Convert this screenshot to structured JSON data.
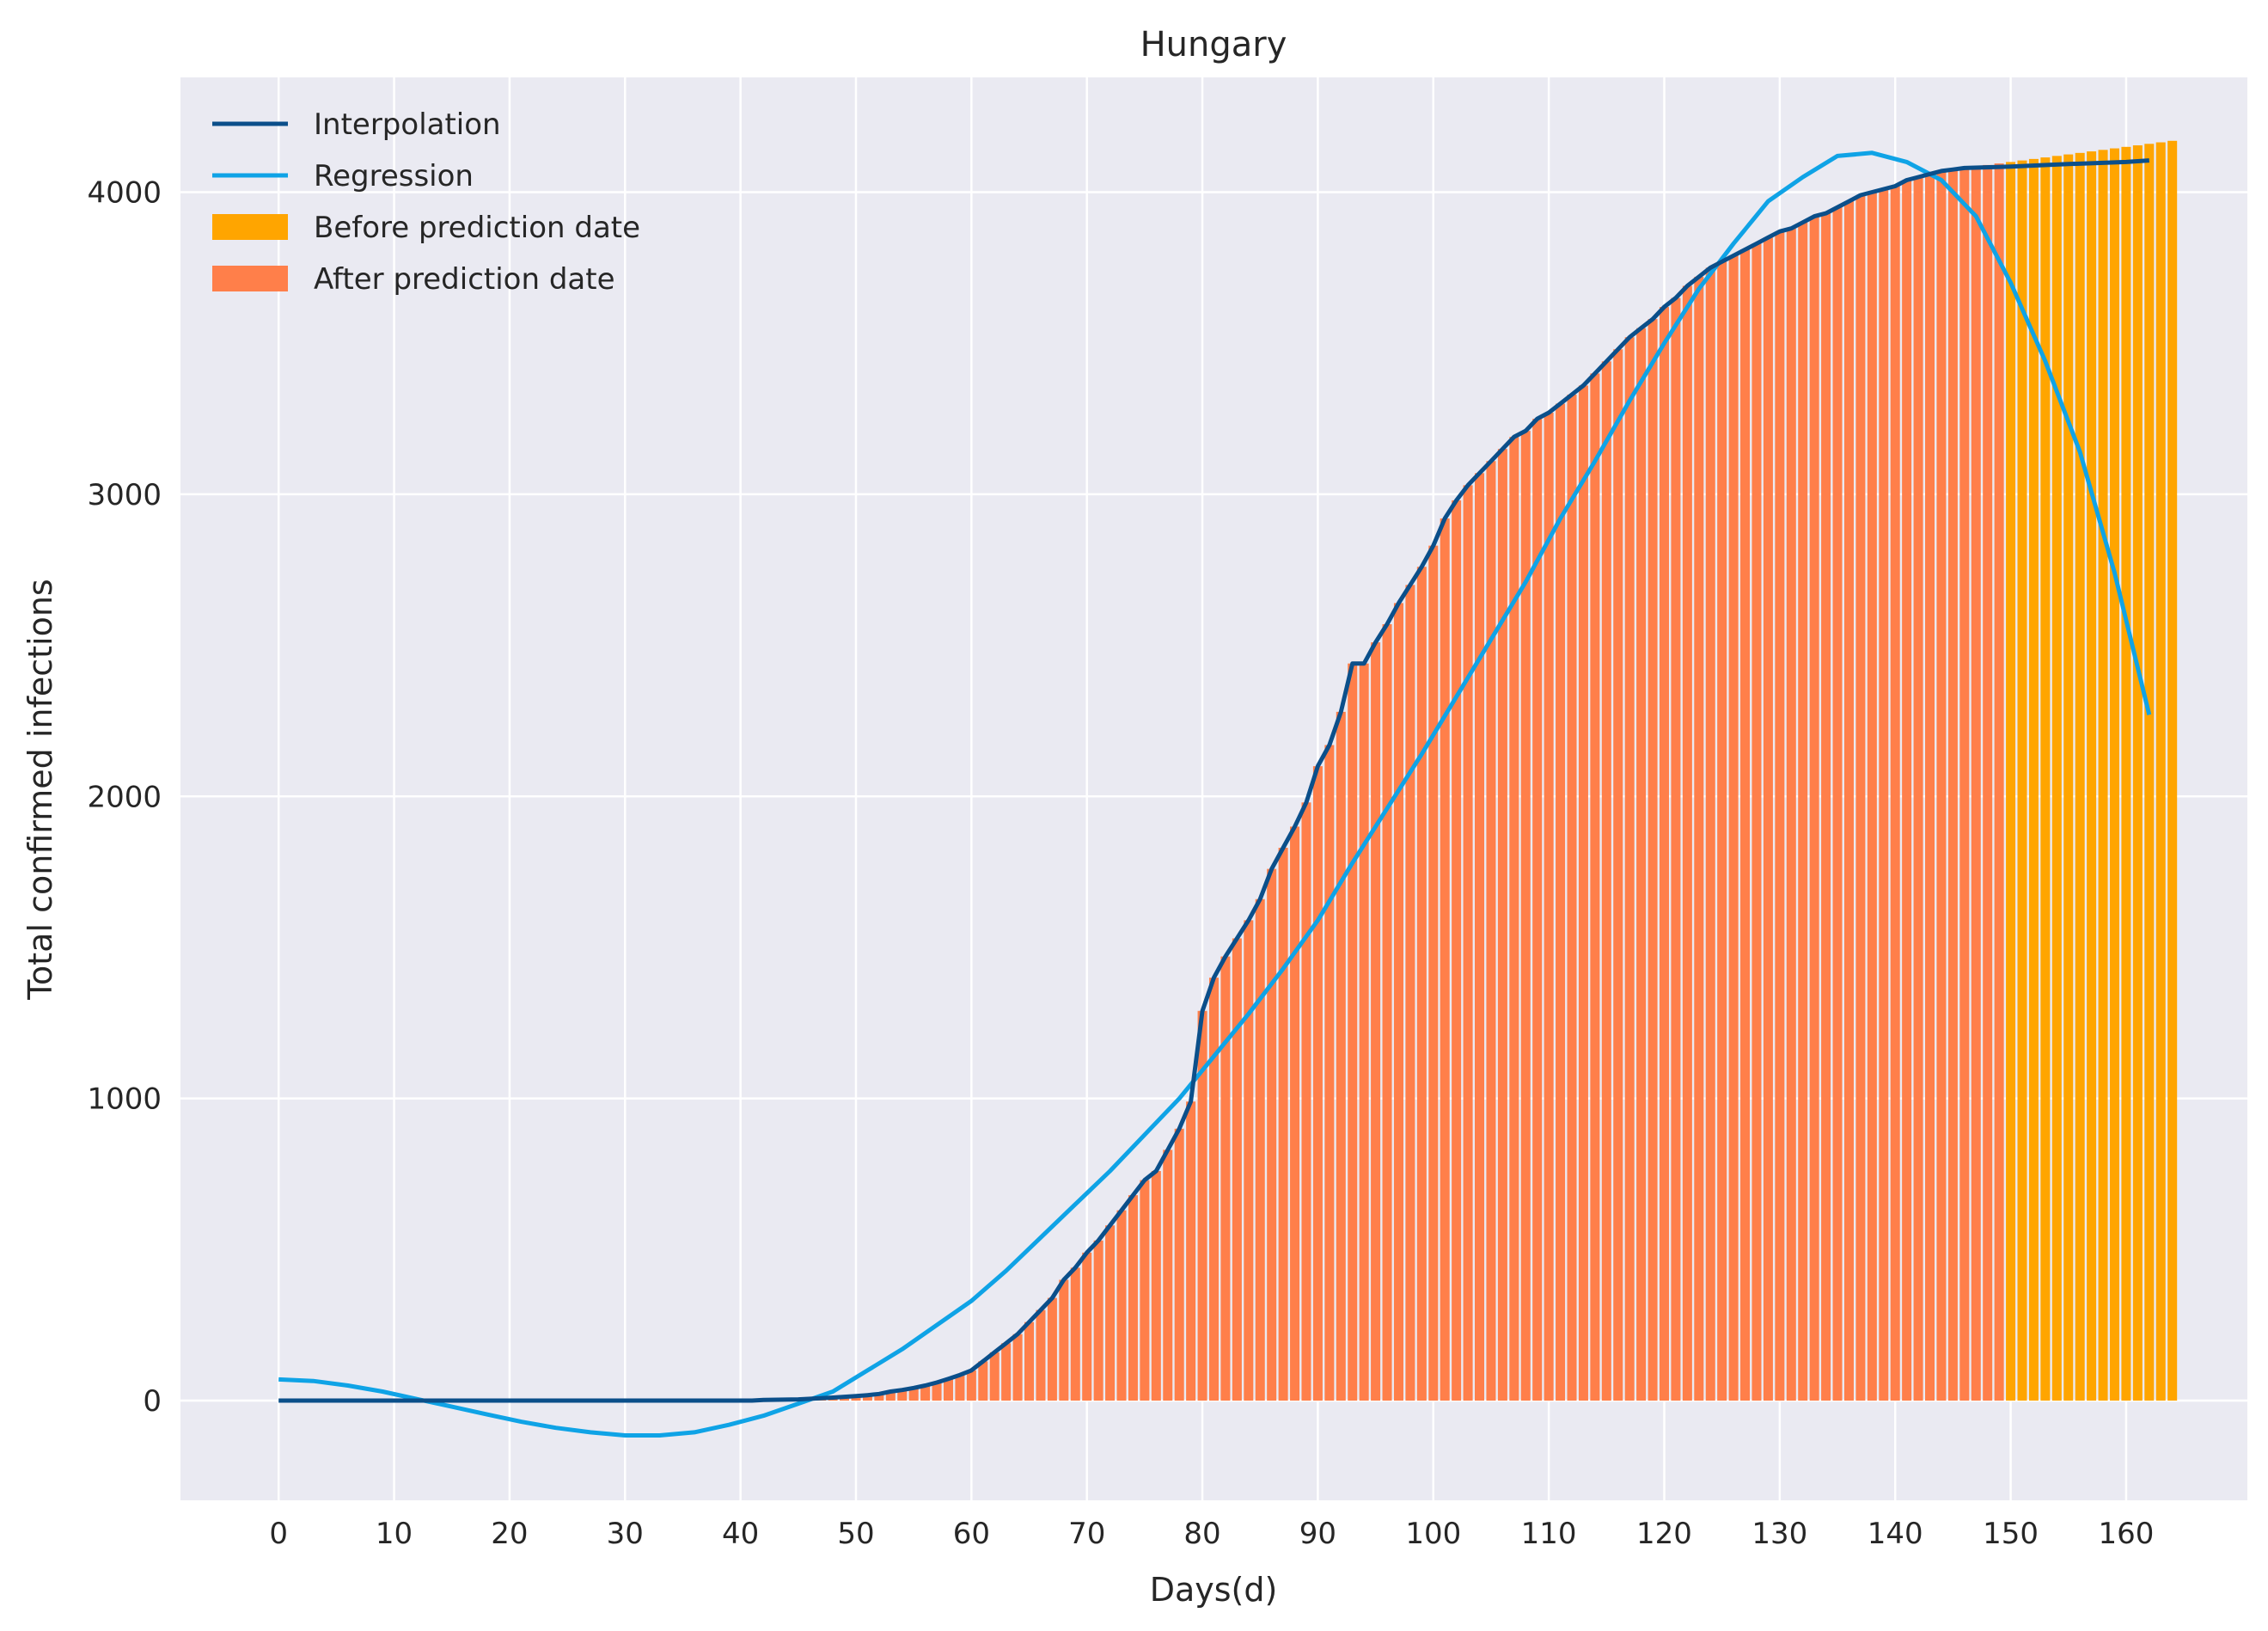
{
  "chart_data": {
    "type": "bar",
    "title": "Hungary",
    "xlabel": "Days(d)",
    "ylabel": "Total confirmed infections",
    "xlim": [
      -8.5,
      170.5
    ],
    "ylim": [
      -330,
      4380
    ],
    "x_ticks": [
      0,
      10,
      20,
      30,
      40,
      50,
      60,
      70,
      80,
      90,
      100,
      110,
      120,
      130,
      140,
      150,
      160
    ],
    "y_ticks": [
      0,
      1000,
      2000,
      3000,
      4000
    ],
    "grid": true,
    "legend_position": "top-left",
    "prediction_day": 150,
    "colors": {
      "background": "#EAEAF2",
      "grid": "#FFFFFF",
      "interpolation": "#0B4F8A",
      "regression": "#0FA3E6",
      "before_prediction": "#FFA500",
      "after_prediction": "#FF7F4A"
    },
    "legend": [
      {
        "label": "Interpolation",
        "kind": "line",
        "color": "#0B4F8A"
      },
      {
        "label": "Regression",
        "kind": "line",
        "color": "#0FA3E6"
      },
      {
        "label": "Before prediction date",
        "kind": "patch",
        "color": "#FFA500"
      },
      {
        "label": "After prediction date",
        "kind": "patch",
        "color": "#FF7F4A"
      }
    ],
    "series": [
      {
        "name": "Interpolation",
        "kind": "line",
        "x": [
          0,
          41,
          42,
          45,
          48,
          50,
          51,
          52,
          53,
          54,
          55,
          56,
          57,
          58,
          59,
          60,
          61,
          62,
          63,
          64,
          65,
          66,
          67,
          68,
          69,
          70,
          71,
          72,
          73,
          74,
          75,
          76,
          77,
          78,
          79,
          80,
          81,
          82,
          83,
          84,
          85,
          86,
          87,
          88,
          89,
          90,
          91,
          92,
          93,
          94,
          95,
          96,
          97,
          98,
          99,
          100,
          101,
          102,
          103,
          104,
          105,
          106,
          107,
          108,
          109,
          110,
          111,
          112,
          113,
          114,
          115,
          116,
          117,
          118,
          119,
          120,
          121,
          122,
          123,
          124,
          125,
          126,
          127,
          128,
          129,
          130,
          131,
          132,
          133,
          134,
          135,
          136,
          137,
          138,
          139,
          140,
          141,
          142,
          143,
          144,
          145,
          146,
          150,
          155,
          160,
          162
        ],
        "y": [
          0,
          0,
          2,
          4,
          10,
          15,
          18,
          22,
          30,
          35,
          42,
          50,
          60,
          72,
          85,
          100,
          130,
          160,
          190,
          220,
          260,
          300,
          340,
          400,
          440,
          490,
          530,
          580,
          630,
          680,
          730,
          760,
          830,
          900,
          990,
          1290,
          1400,
          1470,
          1530,
          1590,
          1660,
          1760,
          1830,
          1900,
          1980,
          2100,
          2170,
          2280,
          2440,
          2440,
          2510,
          2570,
          2640,
          2700,
          2760,
          2830,
          2920,
          2980,
          3030,
          3070,
          3110,
          3150,
          3190,
          3210,
          3250,
          3270,
          3300,
          3330,
          3360,
          3400,
          3440,
          3480,
          3520,
          3550,
          3580,
          3620,
          3650,
          3690,
          3720,
          3750,
          3770,
          3790,
          3810,
          3830,
          3850,
          3870,
          3880,
          3900,
          3920,
          3930,
          3950,
          3970,
          3990,
          4000,
          4010,
          4020,
          4040,
          4050,
          4060,
          4070,
          4075,
          4080,
          4085,
          4093,
          4100,
          4105
        ]
      },
      {
        "name": "Regression",
        "kind": "line",
        "x": [
          0,
          3,
          6,
          9,
          12,
          15,
          18,
          21,
          24,
          27,
          30,
          33,
          36,
          39,
          42,
          45,
          48,
          51,
          54,
          57,
          60,
          63,
          66,
          69,
          72,
          75,
          78,
          81,
          84,
          87,
          90,
          93,
          96,
          99,
          102,
          105,
          108,
          111,
          114,
          117,
          120,
          123,
          126,
          129,
          132,
          135,
          138,
          141,
          144,
          147,
          150,
          153,
          156,
          159,
          162
        ],
        "y": [
          70,
          65,
          50,
          30,
          5,
          -20,
          -45,
          -70,
          -90,
          -105,
          -115,
          -115,
          -105,
          -80,
          -50,
          -10,
          30,
          100,
          170,
          250,
          330,
          430,
          540,
          650,
          760,
          880,
          1000,
          1140,
          1280,
          1430,
          1590,
          1780,
          1960,
          2140,
          2330,
          2520,
          2710,
          2920,
          3110,
          3310,
          3500,
          3680,
          3830,
          3970,
          4050,
          4120,
          4130,
          4100,
          4040,
          3920,
          3700,
          3440,
          3140,
          2740,
          2270
        ]
      },
      {
        "name": "Total confirmed infections",
        "kind": "bar",
        "x_start": 0,
        "x_step": 1,
        "values": [
          0,
          0,
          0,
          0,
          0,
          0,
          0,
          0,
          0,
          0,
          0,
          0,
          0,
          0,
          0,
          0,
          0,
          0,
          0,
          0,
          0,
          0,
          0,
          0,
          0,
          0,
          0,
          0,
          0,
          0,
          0,
          0,
          0,
          0,
          0,
          0,
          0,
          0,
          0,
          0,
          0,
          0,
          2,
          3,
          3,
          4,
          6,
          8,
          10,
          12,
          15,
          18,
          22,
          30,
          35,
          42,
          50,
          60,
          72,
          85,
          100,
          130,
          160,
          190,
          220,
          260,
          300,
          340,
          400,
          440,
          490,
          530,
          580,
          630,
          680,
          730,
          760,
          830,
          900,
          990,
          1290,
          1400,
          1470,
          1530,
          1590,
          1660,
          1760,
          1830,
          1900,
          1980,
          2100,
          2170,
          2280,
          2440,
          2440,
          2510,
          2570,
          2640,
          2700,
          2760,
          2830,
          2920,
          2980,
          3030,
          3070,
          3110,
          3150,
          3190,
          3210,
          3250,
          3270,
          3300,
          3330,
          3360,
          3400,
          3440,
          3480,
          3520,
          3550,
          3580,
          3620,
          3650,
          3690,
          3720,
          3750,
          3770,
          3790,
          3810,
          3830,
          3850,
          3870,
          3880,
          3900,
          3920,
          3930,
          3950,
          3970,
          3990,
          4000,
          4010,
          4020,
          4040,
          4050,
          4060,
          4070,
          4075,
          4080,
          4085,
          4090,
          4095,
          4100,
          4105,
          4110,
          4115,
          4120,
          4125,
          4130,
          4135,
          4140,
          4145,
          4150,
          4155,
          4160,
          4165,
          4170
        ]
      }
    ]
  }
}
